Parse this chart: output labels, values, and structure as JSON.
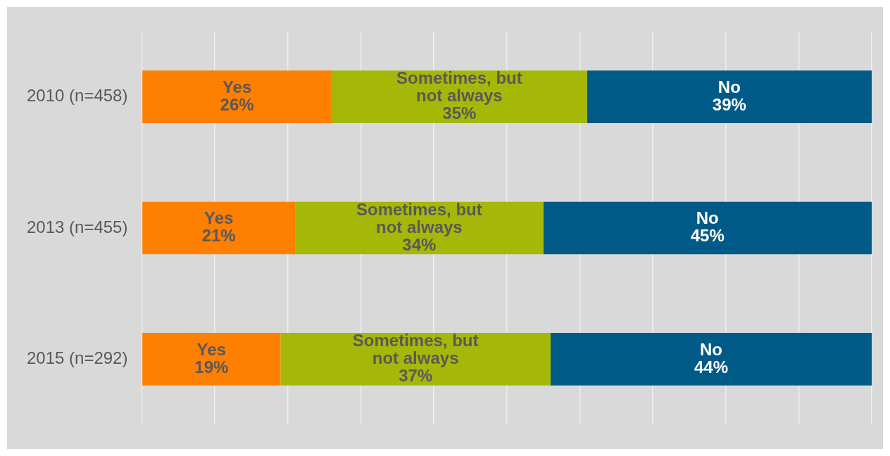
{
  "chart_data": {
    "type": "bar",
    "orientation": "horizontal",
    "stacked": true,
    "categories": [
      "2010 (n=458)",
      "2013 (n=455)",
      "2015 (n=292)"
    ],
    "series": [
      {
        "name": "Yes",
        "color": "#ff7f00",
        "values": [
          26,
          21,
          19
        ],
        "value_labels": [
          "26%",
          "21%",
          "19%"
        ]
      },
      {
        "name": "Sometimes, but not always",
        "color": "#a5b808",
        "values": [
          35,
          34,
          37
        ],
        "value_labels": [
          "35%",
          "34%",
          "37%"
        ]
      },
      {
        "name": "No",
        "color": "#005a87",
        "values": [
          39,
          45,
          44
        ],
        "value_labels": [
          "39%",
          "45%",
          "44%"
        ]
      }
    ],
    "xlim": [
      0,
      100
    ],
    "xticks": [
      {
        "value": 0,
        "label": null
      },
      {
        "value": 10,
        "label": null
      },
      {
        "value": 20,
        "label": null
      },
      {
        "value": 30,
        "label": null
      },
      {
        "value": 40,
        "label": null
      },
      {
        "value": 50,
        "label": null
      },
      {
        "value": 60,
        "label": null
      },
      {
        "value": 70,
        "label": null
      },
      {
        "value": 80,
        "label": null
      },
      {
        "value": 90,
        "label": null
      },
      {
        "value": 100,
        "label": null
      }
    ],
    "tick_labels": "y",
    "grid": "x",
    "legend": false
  }
}
